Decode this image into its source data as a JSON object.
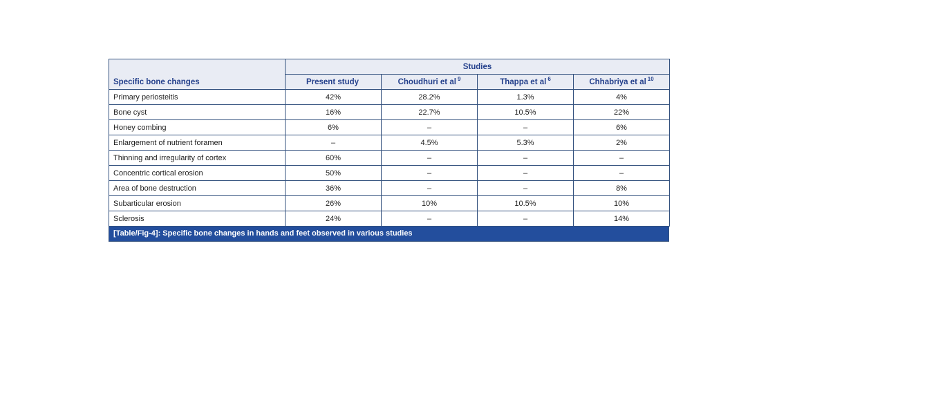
{
  "colors": {
    "header_background": "#e9ecf4",
    "header_text": "#25418c",
    "border": "#33517e",
    "caption_background": "#234e9d",
    "caption_text": "#ffffff",
    "cell_text": "#1d1d1d"
  },
  "table": {
    "group_header": "Studies",
    "row_header_label": "Specific bone changes",
    "columns": [
      {
        "name": "Present study",
        "ref": ""
      },
      {
        "name": "Choudhuri et al",
        "ref": "9"
      },
      {
        "name": "Thappa et al",
        "ref": "6"
      },
      {
        "name": "Chhabriya et al",
        "ref": "10"
      }
    ],
    "rows": [
      {
        "label": "Primary periosteitis",
        "values": [
          "42%",
          "28.2%",
          "1.3%",
          "4%"
        ]
      },
      {
        "label": "Bone cyst",
        "values": [
          "16%",
          "22.7%",
          "10.5%",
          "22%"
        ]
      },
      {
        "label": "Honey combing",
        "values": [
          "6%",
          "–",
          "–",
          "6%"
        ]
      },
      {
        "label": "Enlargement of nutrient foramen",
        "values": [
          "–",
          "4.5%",
          "5.3%",
          "2%"
        ]
      },
      {
        "label": "Thinning and irregularity of cortex",
        "values": [
          "60%",
          "–",
          "–",
          "–"
        ]
      },
      {
        "label": "Concentric cortical erosion",
        "values": [
          "50%",
          "–",
          "–",
          "–"
        ]
      },
      {
        "label": "Area of bone destruction",
        "values": [
          "36%",
          "–",
          "–",
          "8%"
        ]
      },
      {
        "label": "Subarticular erosion",
        "values": [
          "26%",
          "10%",
          "10.5%",
          "10%"
        ]
      },
      {
        "label": "Sclerosis",
        "values": [
          "24%",
          "–",
          "–",
          "14%"
        ]
      }
    ],
    "caption": "[Table/Fig-4]: Specific bone changes in hands and feet observed in various studies"
  }
}
